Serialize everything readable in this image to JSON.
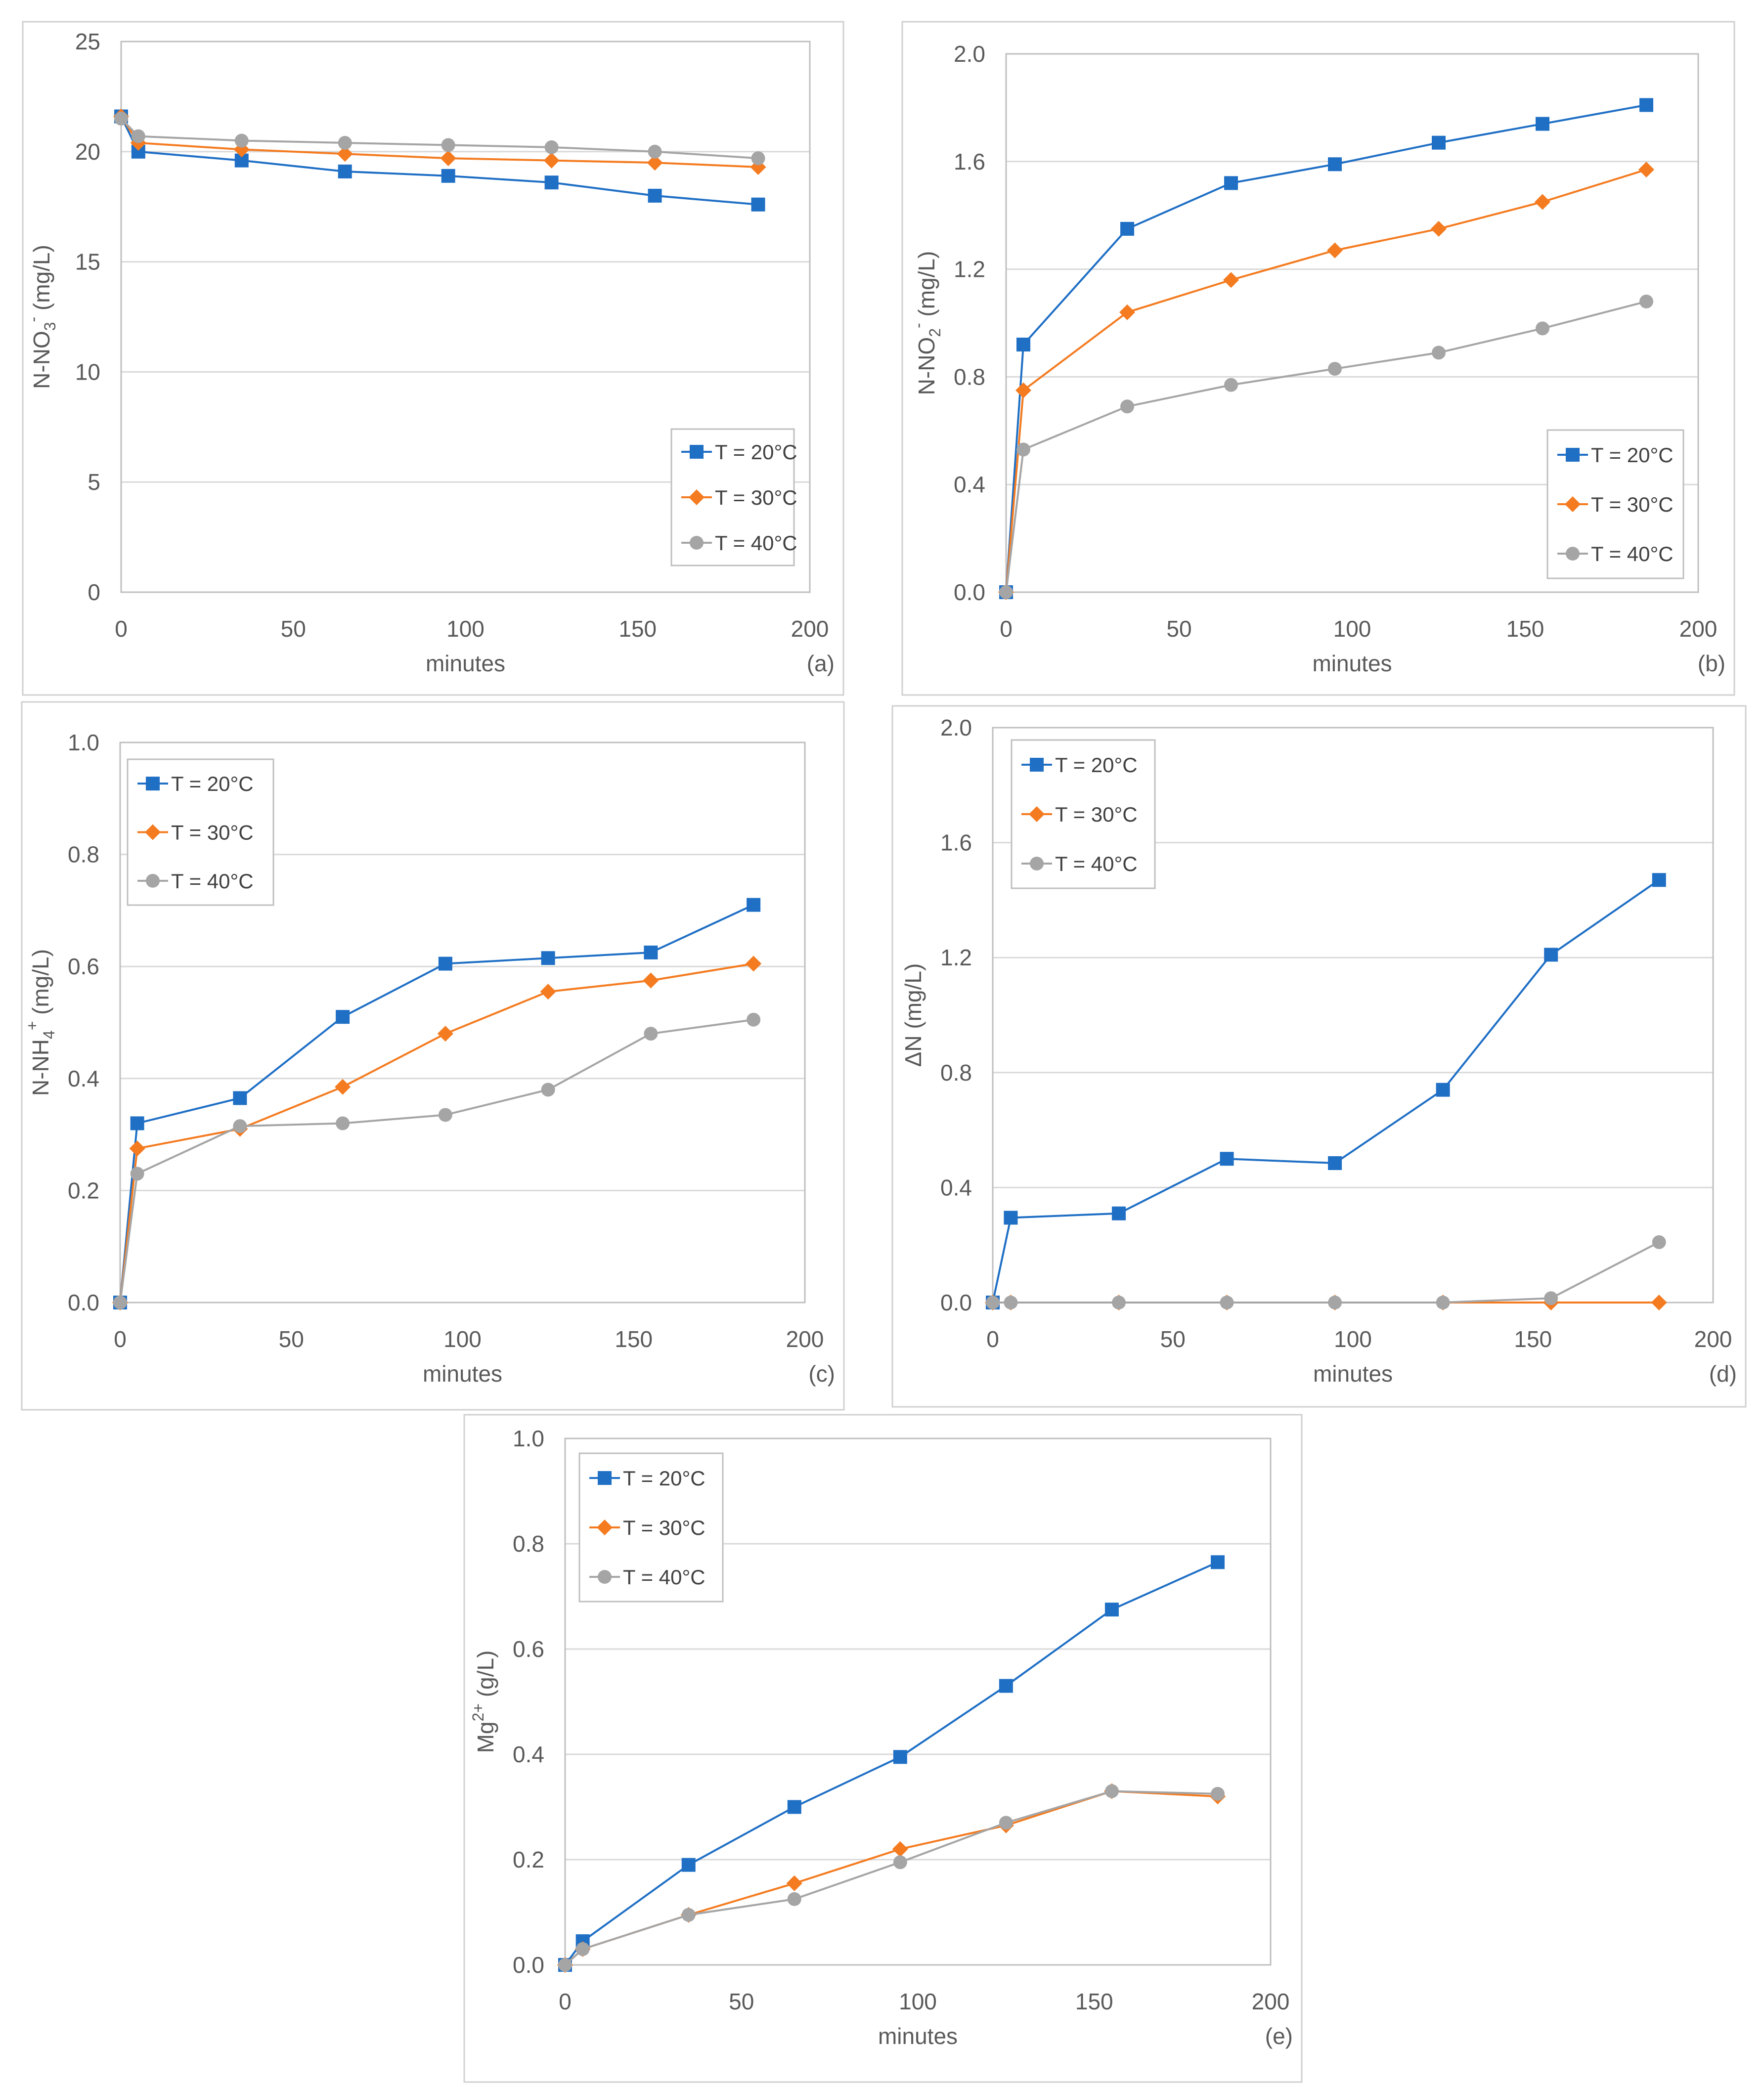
{
  "chart_data": [
    {
      "type": "line",
      "panel_label": "(a)",
      "title": "",
      "xlabel": "minutes",
      "ylabel_parts": [
        "N-NO",
        "3",
        "-",
        " (mg/L)"
      ],
      "xlim": [
        0,
        200
      ],
      "ylim": [
        0,
        25
      ],
      "xticks": [
        0,
        50,
        100,
        150,
        200
      ],
      "yticks": [
        0,
        5,
        10,
        15,
        20,
        25
      ],
      "ytick_labels": [
        "0",
        "5",
        "10",
        "15",
        "20",
        "25"
      ],
      "legend_position": "bottom-right",
      "x": [
        0,
        5,
        35,
        65,
        95,
        125,
        155,
        185
      ],
      "series": [
        {
          "name": "T = 20°C",
          "values": [
            21.6,
            20.0,
            19.6,
            19.1,
            18.9,
            18.6,
            18.0,
            17.6
          ]
        },
        {
          "name": "T = 30°C",
          "values": [
            21.6,
            20.4,
            20.1,
            19.9,
            19.7,
            19.6,
            19.5,
            19.3
          ]
        },
        {
          "name": "T = 40°C",
          "values": [
            21.5,
            20.7,
            20.5,
            20.4,
            20.3,
            20.2,
            20.0,
            19.7
          ]
        }
      ]
    },
    {
      "type": "line",
      "panel_label": "(b)",
      "title": "",
      "xlabel": "minutes",
      "ylabel_parts": [
        "N-NO",
        "2",
        "-",
        " (mg/L)"
      ],
      "xlim": [
        0,
        200
      ],
      "ylim": [
        0,
        2.0
      ],
      "xticks": [
        0,
        50,
        100,
        150,
        200
      ],
      "yticks": [
        0,
        0.4,
        0.8,
        1.2,
        1.6,
        2.0
      ],
      "ytick_labels": [
        "0.0",
        "0.4",
        "0.8",
        "1.2",
        "1.6",
        "2.0"
      ],
      "legend_position": "bottom-right",
      "x": [
        0,
        5,
        35,
        65,
        95,
        125,
        155,
        185
      ],
      "series": [
        {
          "name": "T = 20°C",
          "values": [
            0.0,
            0.92,
            1.35,
            1.52,
            1.59,
            1.67,
            1.74,
            1.81
          ]
        },
        {
          "name": "T = 30°C",
          "values": [
            0.0,
            0.75,
            1.04,
            1.16,
            1.27,
            1.35,
            1.45,
            1.57
          ]
        },
        {
          "name": "T = 40°C",
          "values": [
            0.0,
            0.53,
            0.69,
            0.77,
            0.83,
            0.89,
            0.98,
            1.08
          ]
        }
      ]
    },
    {
      "type": "line",
      "panel_label": "(c)",
      "title": "",
      "xlabel": "minutes",
      "ylabel_parts": [
        "N-NH",
        "4",
        "+",
        " (mg/L)"
      ],
      "xlim": [
        0,
        200
      ],
      "ylim": [
        0,
        1.0
      ],
      "xticks": [
        0,
        50,
        100,
        150,
        200
      ],
      "yticks": [
        0,
        0.2,
        0.4,
        0.6,
        0.8,
        1.0
      ],
      "ytick_labels": [
        "0.0",
        "0.2",
        "0.4",
        "0.6",
        "0.8",
        "1.0"
      ],
      "legend_position": "top-left",
      "x": [
        0,
        5,
        35,
        65,
        95,
        125,
        155,
        185
      ],
      "series": [
        {
          "name": "T = 20°C",
          "values": [
            0.0,
            0.32,
            0.365,
            0.51,
            0.605,
            0.615,
            0.625,
            0.71
          ]
        },
        {
          "name": "T = 30°C",
          "values": [
            0.0,
            0.275,
            0.31,
            0.385,
            0.48,
            0.555,
            0.575,
            0.605
          ]
        },
        {
          "name": "T = 40°C",
          "values": [
            0.0,
            0.23,
            0.315,
            0.32,
            0.335,
            0.38,
            0.48,
            0.505
          ]
        }
      ]
    },
    {
      "type": "line",
      "panel_label": "(d)",
      "title": "",
      "xlabel": "minutes",
      "ylabel_parts": [
        "ΔN (mg/L)"
      ],
      "xlim": [
        0,
        200
      ],
      "ylim": [
        0,
        2.0
      ],
      "xticks": [
        0,
        50,
        100,
        150,
        200
      ],
      "yticks": [
        0,
        0.4,
        0.8,
        1.2,
        1.6,
        2.0
      ],
      "ytick_labels": [
        "0.0",
        "0.4",
        "0.8",
        "1.2",
        "1.6",
        "2.0"
      ],
      "legend_position": "top-left",
      "x": [
        0,
        5,
        35,
        65,
        95,
        125,
        155,
        185
      ],
      "series": [
        {
          "name": "T = 20°C",
          "values": [
            0.0,
            0.295,
            0.31,
            0.5,
            0.485,
            0.74,
            1.21,
            1.47
          ]
        },
        {
          "name": "T = 30°C",
          "values": [
            0.0,
            0.0,
            0.0,
            0.0,
            0.0,
            0.0,
            0.0,
            0.0
          ]
        },
        {
          "name": "T = 40°C",
          "values": [
            0.0,
            0.0,
            0.0,
            0.0,
            0.0,
            0.0,
            0.015,
            0.21
          ]
        }
      ]
    },
    {
      "type": "line",
      "panel_label": "(e)",
      "title": "",
      "xlabel": "minutes",
      "ylabel_parts": [
        "Mg",
        "",
        "2+",
        " (g/L)"
      ],
      "xlim": [
        0,
        200
      ],
      "ylim": [
        0,
        1.0
      ],
      "xticks": [
        0,
        50,
        100,
        150,
        200
      ],
      "yticks": [
        0,
        0.2,
        0.4,
        0.6,
        0.8,
        1.0
      ],
      "ytick_labels": [
        "0.0",
        "0.2",
        "0.4",
        "0.6",
        "0.8",
        "1.0"
      ],
      "legend_position": "top-left",
      "x": [
        0,
        5,
        35,
        65,
        95,
        125,
        155,
        185
      ],
      "series": [
        {
          "name": "T = 20°C",
          "values": [
            0.0,
            0.045,
            0.19,
            0.3,
            0.395,
            0.53,
            0.675,
            0.765
          ]
        },
        {
          "name": "T = 30°C",
          "values": [
            0.0,
            0.03,
            0.095,
            0.155,
            0.22,
            0.265,
            0.33,
            0.32
          ]
        },
        {
          "name": "T = 40°C",
          "values": [
            0.0,
            0.03,
            0.095,
            0.125,
            0.195,
            0.27,
            0.33,
            0.325
          ]
        }
      ]
    }
  ],
  "series_styles": [
    {
      "color": "#1f6fc5",
      "marker": "square"
    },
    {
      "color": "#f47b20",
      "marker": "diamond"
    },
    {
      "color": "#a5a5a5",
      "marker": "circle"
    }
  ],
  "colors": {
    "grid": "#d9d9d9",
    "frame": "#bfbfbf",
    "panel_border": "#d0d0d0",
    "text": "#595959"
  }
}
